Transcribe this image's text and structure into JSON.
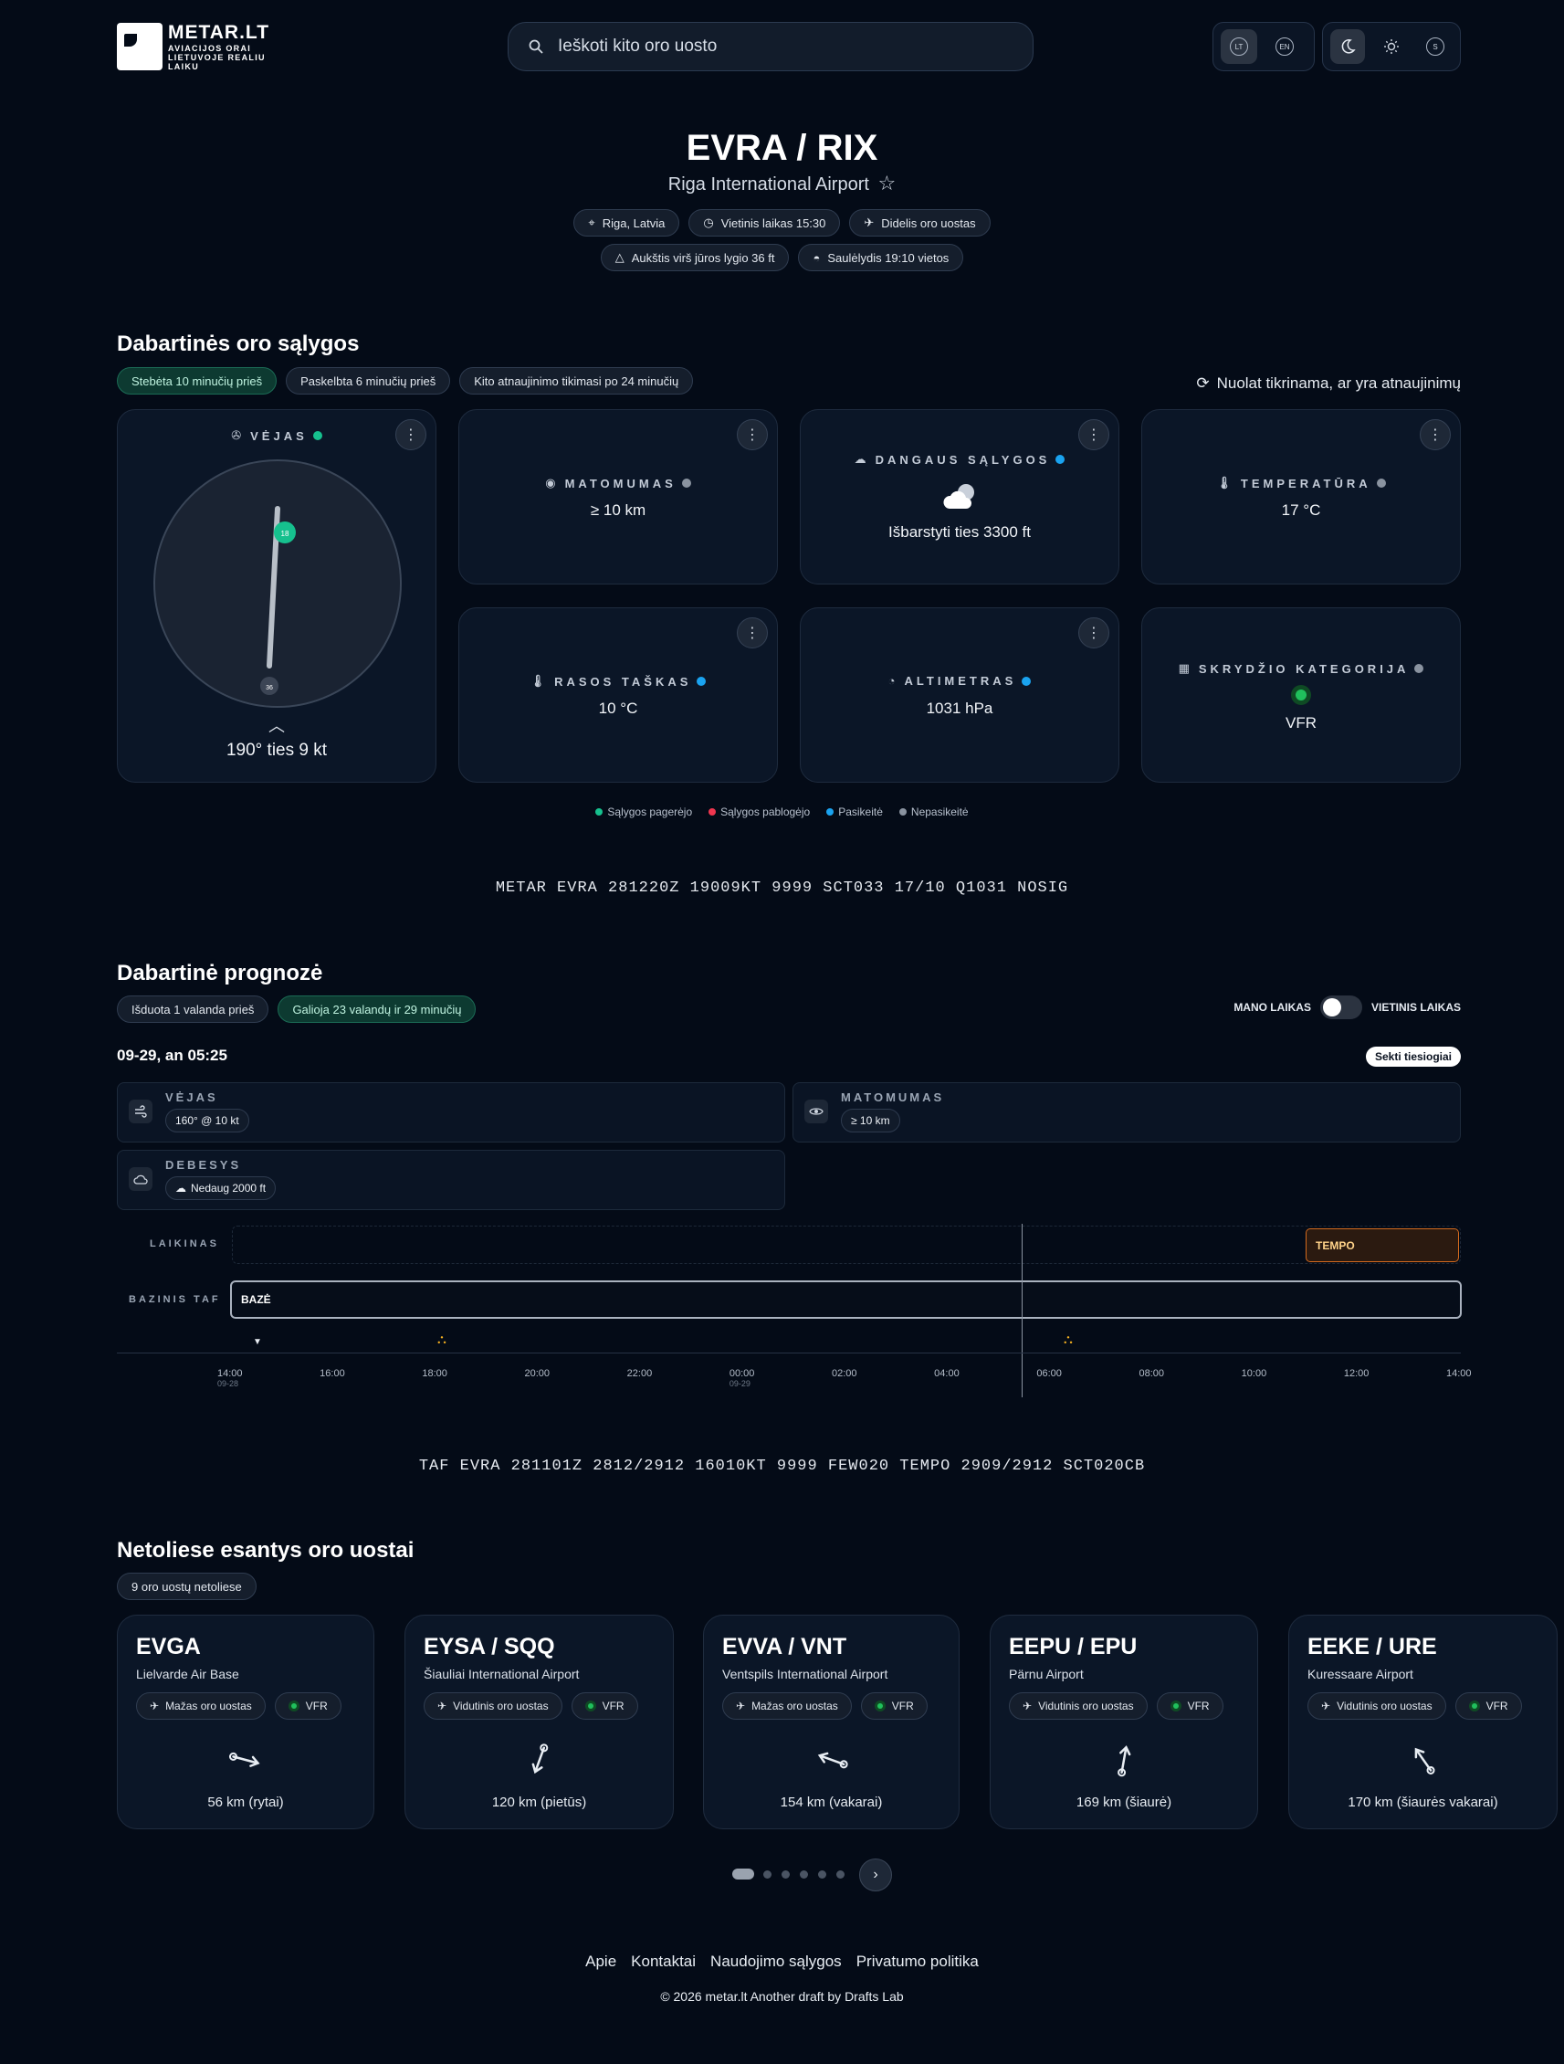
{
  "header": {
    "logo_title": "METAR.LT",
    "logo_sub": "AVIACIJOS ORAI LIETUVOJE REALIU LAIKU",
    "search_placeholder": "Ieškoti kito oro uosto",
    "lang": [
      "LT",
      "EN"
    ],
    "theme_s": "S"
  },
  "airport": {
    "code": "EVRA / RIX",
    "name": "Riga International Airport",
    "chips": [
      "Riga, Latvia",
      "Vietinis laikas 15:30",
      "Didelis oro uostas"
    ],
    "chips2": [
      "Aukštis virš jūros lygio 36 ft",
      "Saulėlydis 19:10 vietos"
    ]
  },
  "current": {
    "heading": "Dabartinės oro sąlygos",
    "chips": [
      "Stebėta 10 minučių prieš",
      "Paskelbta 6 minučių prieš",
      "Kito atnaujinimo tikimasi po 24 minučių"
    ],
    "refresh": "Nuolat tikrinama, ar yra atnaujinimų",
    "wind": {
      "label": "VĖJAS",
      "value": "190° ties 9 kt",
      "head": "18",
      "tail": "36",
      "direction_deg": 190,
      "status_color": "#16c08e"
    },
    "visibility": {
      "label": "MATOMUMAS",
      "value": "≥ 10 km",
      "status_color": "#8a93a0"
    },
    "sky": {
      "label": "DANGAUS SĄLYGOS",
      "value": "Išbarstyti ties 3300 ft",
      "status_color": "#1aa3f0"
    },
    "temp": {
      "label": "TEMPERATŪRA",
      "value": "17 °C",
      "status_color": "#8a93a0"
    },
    "dew": {
      "label": "RASOS TAŠKAS",
      "value": "10 °C",
      "status_color": "#1aa3f0"
    },
    "alt": {
      "label": "ALTIMETRAS",
      "value": "1031 hPa",
      "status_color": "#1aa3f0"
    },
    "cat": {
      "label": "SKRYDŽIO KATEGORIJA",
      "value": "VFR",
      "status_color": "#8a93a0",
      "cat_color": "#20c05c"
    },
    "legend": [
      {
        "label": "Sąlygos pagerėjo",
        "color": "#16c08e"
      },
      {
        "label": "Sąlygos pablogėjo",
        "color": "#f0364f"
      },
      {
        "label": "Pasikeitė",
        "color": "#1aa3f0"
      },
      {
        "label": "Nepasikeitė",
        "color": "#8a93a0"
      }
    ],
    "metar": "METAR EVRA 281220Z 19009KT 9999 SCT033 17/10 Q1031 NOSIG"
  },
  "forecast": {
    "heading": "Dabartinė prognozė",
    "chips": [
      "Išduota 1 valanda prieš",
      "Galioja 23 valandų ir 29 minučių"
    ],
    "my_time": "MANO LAIKAS",
    "local_time": "VIETINIS LAIKAS",
    "date": "09-29, an 05:25",
    "follow": "Sekti tiesiogiai",
    "wind_label": "VĖJAS",
    "wind_value": "160° @ 10 kt",
    "vis_label": "MATOMUMAS",
    "vis_value": "≥ 10 km",
    "cloud_label": "DEBESYS",
    "cloud_value": "Nedaug 2000 ft",
    "row_temp": "LAIKINAS",
    "row_base": "BAZINIS TAF",
    "tempo": "TEMPO",
    "base": "BAZĖ",
    "ticks": [
      {
        "t": "14:00",
        "d": "09-28"
      },
      {
        "t": "16:00",
        "d": ""
      },
      {
        "t": "18:00",
        "d": ""
      },
      {
        "t": "20:00",
        "d": ""
      },
      {
        "t": "22:00",
        "d": ""
      },
      {
        "t": "00:00",
        "d": "09-29"
      },
      {
        "t": "02:00",
        "d": ""
      },
      {
        "t": "04:00",
        "d": ""
      },
      {
        "t": "06:00",
        "d": ""
      },
      {
        "t": "08:00",
        "d": ""
      },
      {
        "t": "10:00",
        "d": ""
      },
      {
        "t": "12:00",
        "d": ""
      },
      {
        "t": "14:00",
        "d": ""
      }
    ],
    "taf": "TAF EVRA 281101Z 2812/2912 16010KT 9999 FEW020 TEMPO 2909/2912 SCT020CB"
  },
  "nearby": {
    "heading": "Netoliese esantys oro uostai",
    "count_chip": "9 oro uostų netoliese",
    "airports": [
      {
        "code": "EVGA",
        "name": "Lielvarde Air Base",
        "size": "Mažas oro uostas",
        "cat": "VFR",
        "dist": "56 km (rytai)",
        "bearing": 105
      },
      {
        "code": "EYSA / SQQ",
        "name": "Šiauliai International Airport",
        "size": "Vidutinis oro uostas",
        "cat": "VFR",
        "dist": "120 km (pietūs)",
        "bearing": 200
      },
      {
        "code": "EVVA / VNT",
        "name": "Ventspils International Airport",
        "size": "Mažas oro uostas",
        "cat": "VFR",
        "dist": "154 km (vakarai)",
        "bearing": 290
      },
      {
        "code": "EEPU / EPU",
        "name": "Pärnu Airport",
        "size": "Vidutinis oro uostas",
        "cat": "VFR",
        "dist": "169 km (šiaurė)",
        "bearing": 10
      },
      {
        "code": "EEKE / URE",
        "name": "Kuressaare Airport",
        "size": "Vidutinis oro uostas",
        "cat": "VFR",
        "dist": "170 km (šiaurės vakarai)",
        "bearing": 325
      }
    ]
  },
  "footer": {
    "links": [
      "Apie",
      "Kontaktai",
      "Naudojimo sąlygos",
      "Privatumo politika"
    ],
    "copy": "© 2026 metar.lt Another draft by Drafts Lab"
  }
}
